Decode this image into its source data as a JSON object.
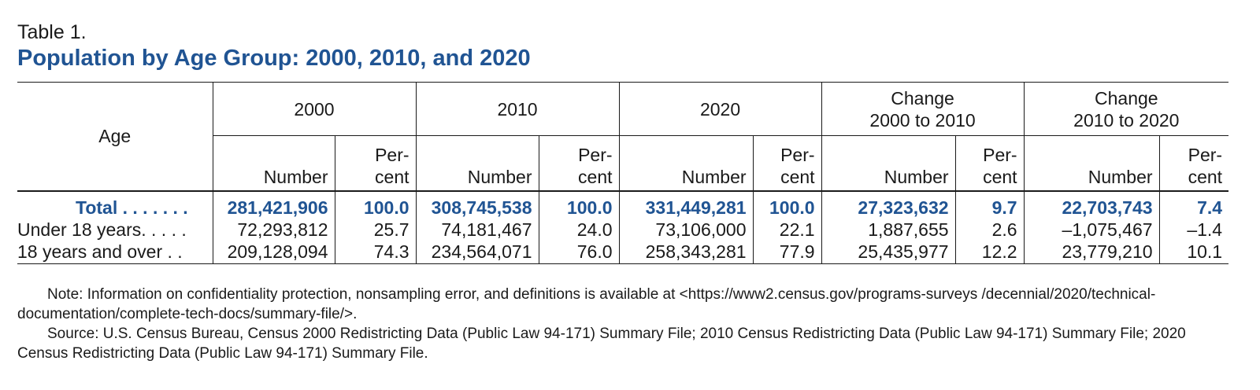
{
  "table_label": "Table 1.",
  "table_title": "Population by Age Group: 2000, 2010, and 2020",
  "header": {
    "age": "Age",
    "groups": [
      {
        "line1": "2000",
        "line2": ""
      },
      {
        "line1": "2010",
        "line2": ""
      },
      {
        "line1": "2020",
        "line2": ""
      },
      {
        "line1": "Change",
        "line2": "2000 to 2010"
      },
      {
        "line1": "Change",
        "line2": "2010 to 2020"
      }
    ],
    "number_label": "Number",
    "percent_label_1": "Per-",
    "percent_label_2": "cent"
  },
  "rows": [
    {
      "label": "Total",
      "leader": ". . . . . . .",
      "values": [
        "281,421,906",
        "100.0",
        "308,745,538",
        "100.0",
        "331,449,281",
        "100.0",
        "27,323,632",
        "9.7",
        "22,703,743",
        "7.4"
      ]
    },
    {
      "label": "Under 18 years",
      "leader": ". . . . .",
      "values": [
        "72,293,812",
        "25.7",
        "74,181,467",
        "24.0",
        "73,106,000",
        "22.1",
        "1,887,655",
        "2.6",
        "–1,075,467",
        "–1.4"
      ]
    },
    {
      "label": "18 years and over",
      "leader": " . .",
      "values": [
        "209,128,094",
        "74.3",
        "234,564,071",
        "76.0",
        "258,343,281",
        "77.9",
        "25,435,977",
        "12.2",
        "23,779,210",
        "10.1"
      ]
    }
  ],
  "notes": {
    "note": "Note: Information on confidentiality protection, nonsampling error, and definitions is available at <https://www2.census.gov/programs-surveys /decennial/2020/technical-documentation/complete-tech-docs/summary-file/>.",
    "source": "Source: U.S. Census Bureau, Census 2000 Redistricting Data (Public Law 94-171) Summary File; 2010 Census Redistricting Data (Public Law 94-171) Summary File; 2020 Census Redistricting Data (Public Law 94-171) Summary File."
  },
  "colors": {
    "title_blue": "#205493",
    "text": "#1a1a1a"
  }
}
